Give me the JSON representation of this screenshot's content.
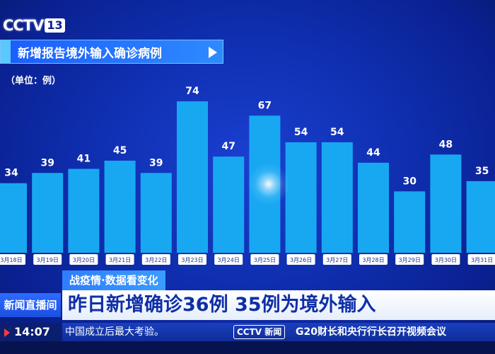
{
  "channel": {
    "logo": "CCTV",
    "number": "13"
  },
  "chart_data": {
    "type": "bar",
    "title": "新增报告境外输入确诊病例",
    "unit_label": "（单位：例）",
    "categories": [
      "3月18日",
      "3月19日",
      "3月20日",
      "3月21日",
      "3月22日",
      "3月23日",
      "3月24日",
      "3月25日",
      "3月26日",
      "3月27日",
      "3月28日",
      "3月29日",
      "3月30日",
      "3月31日"
    ],
    "values": [
      34,
      39,
      41,
      45,
      39,
      74,
      47,
      67,
      54,
      54,
      44,
      30,
      48,
      35
    ],
    "ylim": [
      0,
      80
    ],
    "bar_color": "#18a8f2",
    "label_color": "#ffffff",
    "grid": false
  },
  "banner": {
    "topic": "战疫情·数据看变化",
    "live": "新闻直播间",
    "headline": "昨日新增确诊36例 35例为境外输入"
  },
  "ticker": {
    "time": "14:07",
    "text_left": "中国成立后最大考验。",
    "logo": "CCTV 新闻",
    "text_right": "G20财长和央行行长召开视频会议"
  }
}
